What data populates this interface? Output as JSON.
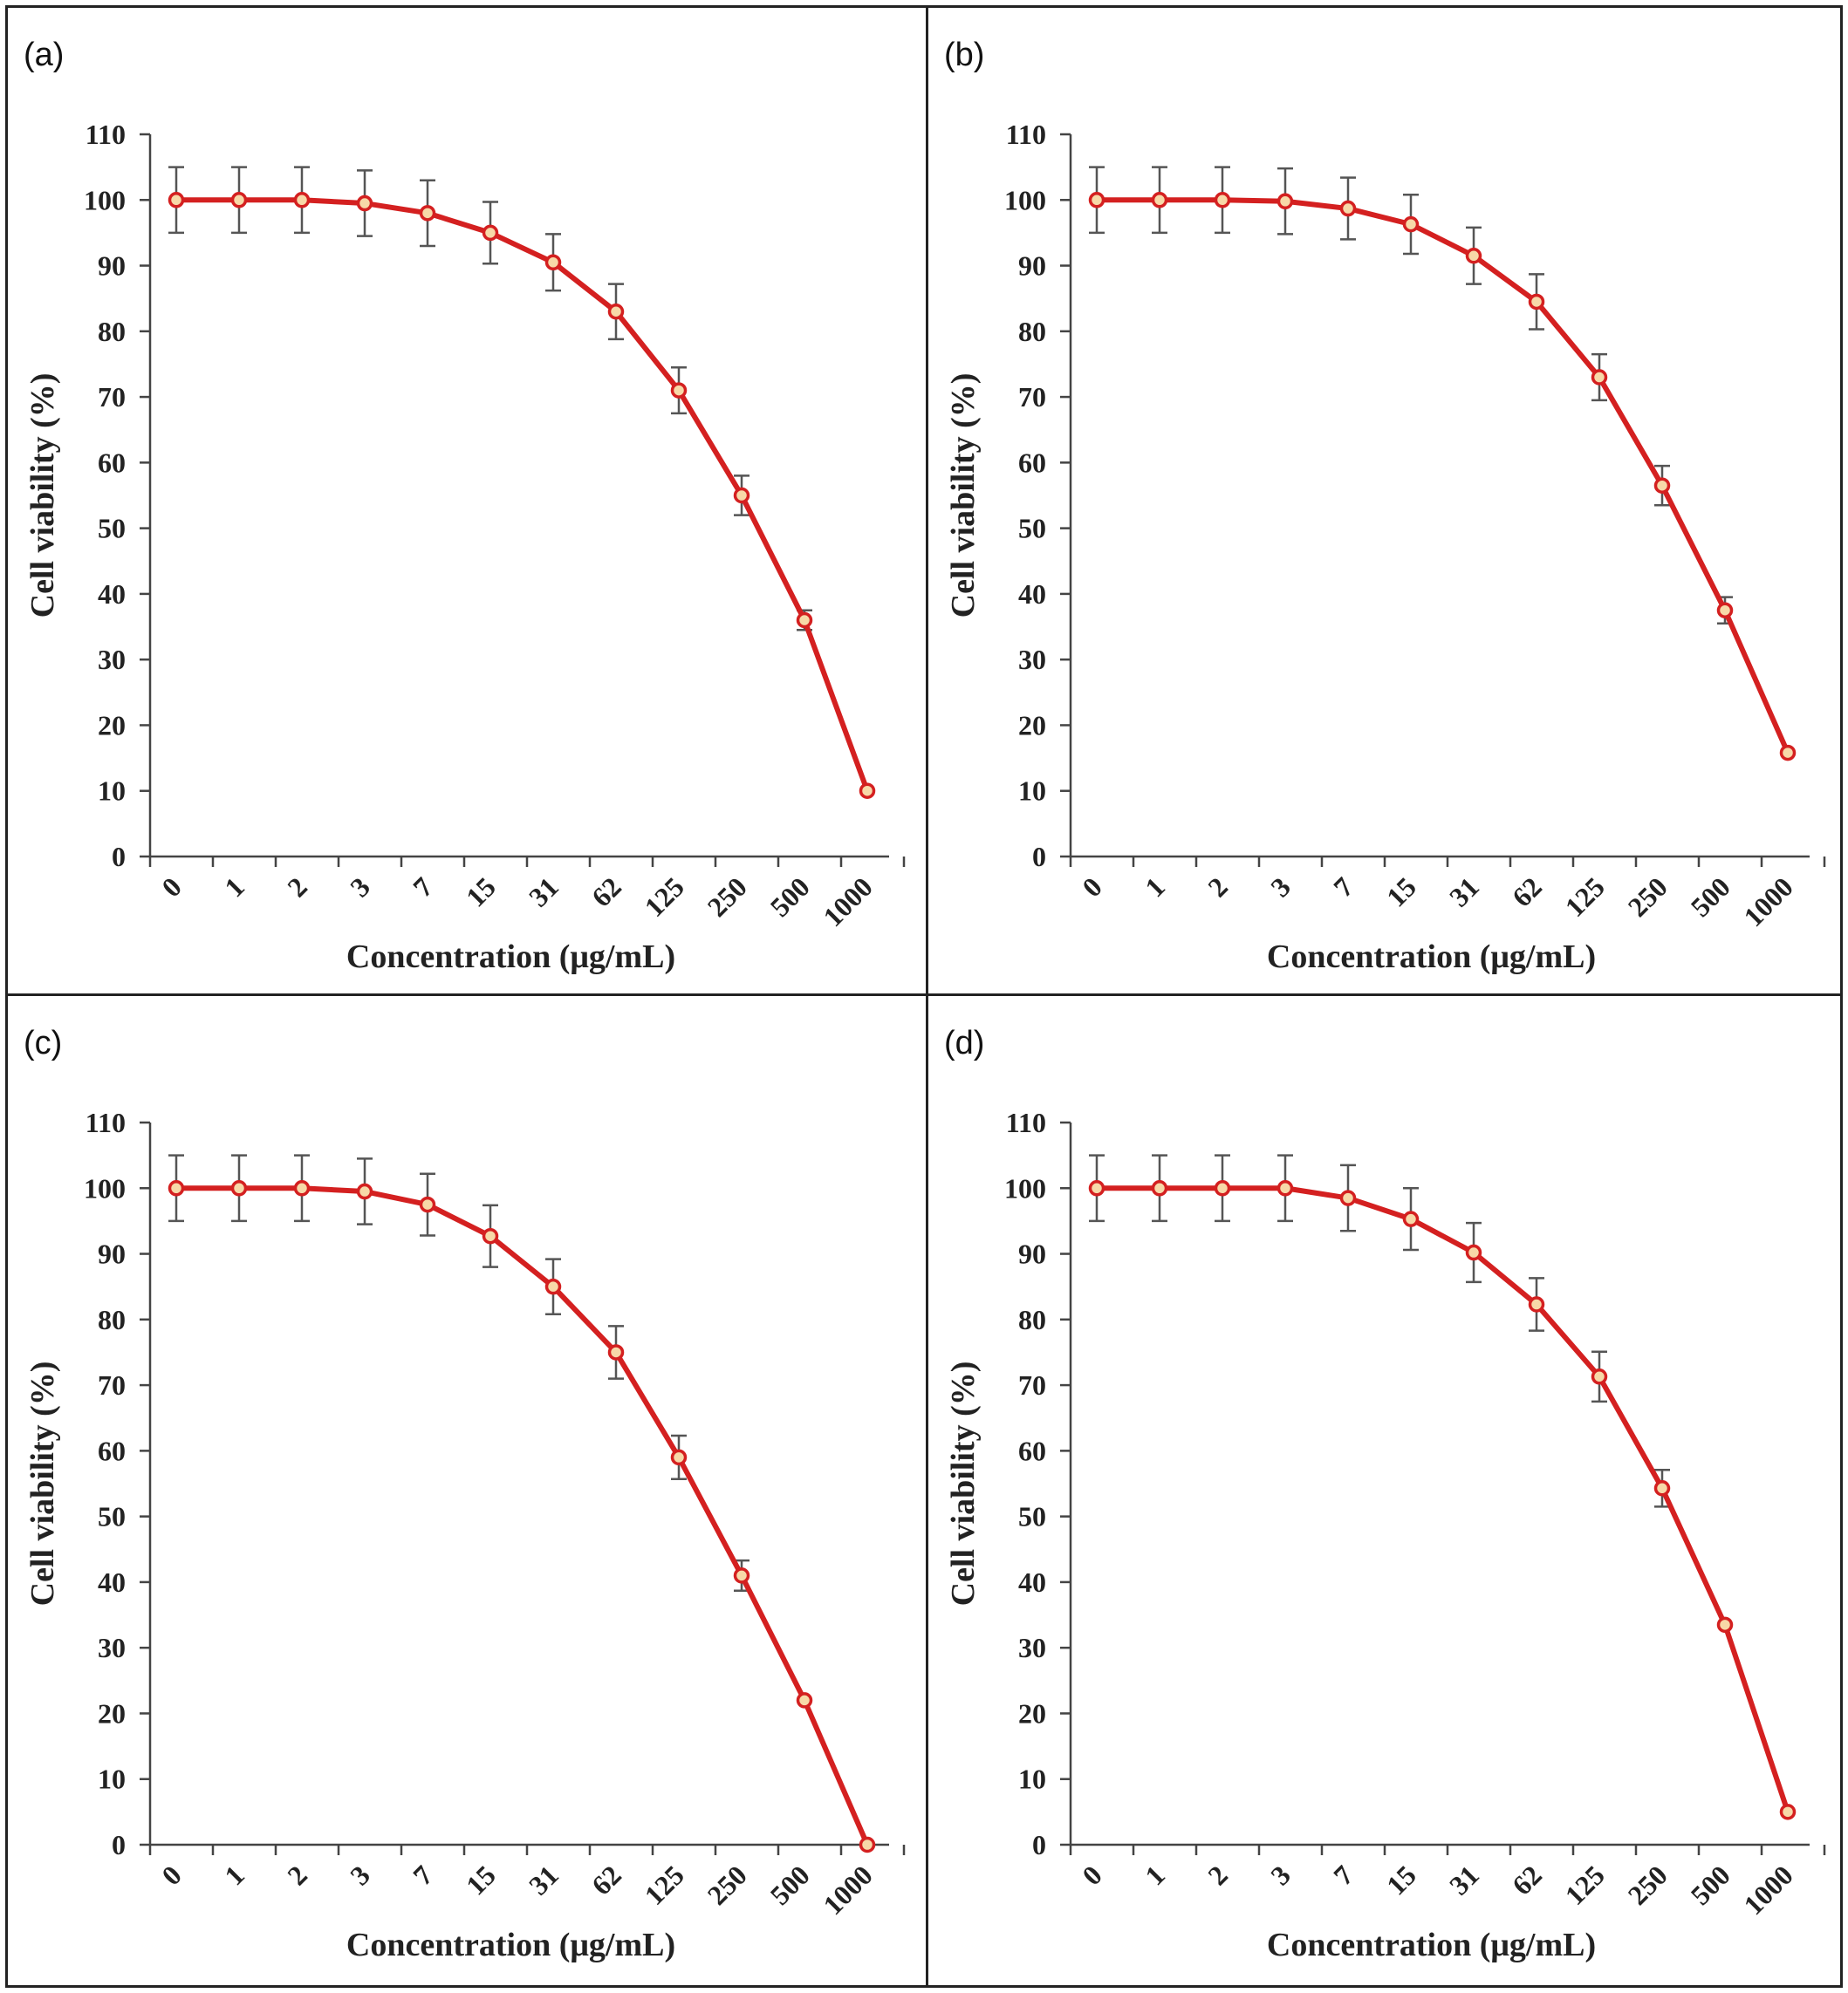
{
  "chart_data": [
    {
      "panel": "(a)",
      "type": "line",
      "xlabel": "Concentration (μg/mL)",
      "ylabel": "Cell viability (%)",
      "categories": [
        "0",
        "1",
        "2",
        "3",
        "7",
        "15",
        "31",
        "62",
        "125",
        "250",
        "500",
        "1000"
      ],
      "values": [
        100,
        100,
        100,
        99.5,
        98,
        95,
        90.5,
        83,
        71,
        55,
        36,
        10
      ],
      "errors": [
        5,
        5,
        5,
        5,
        5,
        4.7,
        4.3,
        4.2,
        3.5,
        3,
        1.5,
        0
      ],
      "ylim": [
        0,
        110
      ],
      "yticks": [
        0,
        10,
        20,
        30,
        40,
        50,
        60,
        70,
        80,
        90,
        100,
        110
      ],
      "series_color": "#d42020",
      "marker_fill": "#f7d9a8",
      "errorbar_color": "#555555",
      "grid": false,
      "legend": "none"
    },
    {
      "panel": "(b)",
      "type": "line",
      "xlabel": "Concentration (μg/mL)",
      "ylabel": "Cell viability (%)",
      "categories": [
        "0",
        "1",
        "2",
        "3",
        "7",
        "15",
        "31",
        "62",
        "125",
        "250",
        "500",
        "1000"
      ],
      "values": [
        100,
        100,
        100,
        99.8,
        98.7,
        96.3,
        91.5,
        84.5,
        73,
        56.5,
        37.5,
        15.8
      ],
      "errors": [
        5,
        5,
        5,
        5,
        4.7,
        4.5,
        4.3,
        4.2,
        3.5,
        3,
        2,
        0
      ],
      "ylim": [
        0,
        110
      ],
      "yticks": [
        0,
        10,
        20,
        30,
        40,
        50,
        60,
        70,
        80,
        90,
        100,
        110
      ],
      "series_color": "#d42020",
      "marker_fill": "#f7d9a8",
      "errorbar_color": "#555555",
      "grid": false,
      "legend": "none"
    },
    {
      "panel": "(c)",
      "type": "line",
      "xlabel": "Concentration (μg/mL)",
      "ylabel": "Cell viability (%)",
      "categories": [
        "0",
        "1",
        "2",
        "3",
        "7",
        "15",
        "31",
        "62",
        "125",
        "250",
        "500",
        "1000"
      ],
      "values": [
        100,
        100,
        100,
        99.5,
        97.5,
        92.7,
        85,
        75,
        59,
        41,
        22,
        0
      ],
      "errors": [
        5,
        5,
        5,
        5,
        4.7,
        4.7,
        4.2,
        4,
        3.3,
        2.3,
        0,
        0
      ],
      "ylim": [
        0,
        110
      ],
      "yticks": [
        0,
        10,
        20,
        30,
        40,
        50,
        60,
        70,
        80,
        90,
        100,
        110
      ],
      "series_color": "#d42020",
      "marker_fill": "#f7d9a8",
      "errorbar_color": "#555555",
      "grid": false,
      "legend": "none"
    },
    {
      "panel": "(d)",
      "type": "line",
      "xlabel": "Concentration (μg/mL)",
      "ylabel": "Cell viability (%)",
      "categories": [
        "0",
        "1",
        "2",
        "3",
        "7",
        "15",
        "31",
        "62",
        "125",
        "250",
        "500",
        "1000"
      ],
      "values": [
        100,
        100,
        100,
        100,
        98.5,
        95.3,
        90.2,
        82.3,
        71.3,
        54.3,
        33.5,
        5
      ],
      "errors": [
        5,
        5,
        5,
        5,
        5,
        4.7,
        4.5,
        4,
        3.8,
        2.8,
        0,
        0
      ],
      "ylim": [
        0,
        110
      ],
      "yticks": [
        0,
        10,
        20,
        30,
        40,
        50,
        60,
        70,
        80,
        90,
        100,
        110
      ],
      "series_color": "#d42020",
      "marker_fill": "#f7d9a8",
      "errorbar_color": "#555555",
      "grid": false,
      "legend": "none"
    }
  ]
}
